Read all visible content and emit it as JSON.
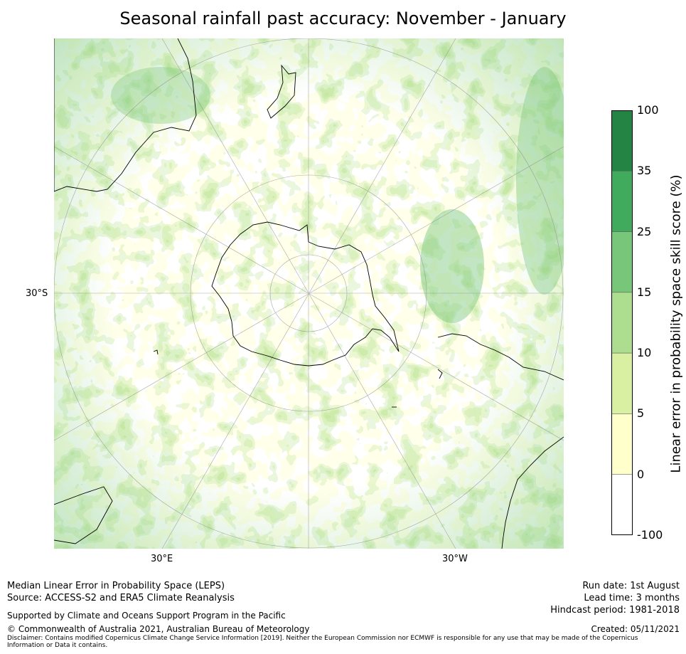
{
  "title": "Seasonal rainfall past accuracy: November - January",
  "axis_labels": {
    "lat_left": "30°S",
    "lon_left": "30°E",
    "lon_right": "30°W"
  },
  "colorbar": {
    "label": "Linear error in probability space skill score (%)",
    "ticks": [
      "100",
      "35",
      "25",
      "15",
      "10",
      "5",
      "0",
      "-100"
    ],
    "colors_top_to_bottom": [
      "#238443",
      "#41ab5d",
      "#78c679",
      "#addd8e",
      "#d9f0a3",
      "#ffffcc",
      "#ffffff"
    ]
  },
  "footer": {
    "left_line1": "Median Linear Error in Probability Space (LEPS)",
    "left_line2": "Source: ACCESS-S2 and ERA5 Climate Reanalysis",
    "support": "Supported by Climate and Oceans Support Program in the Pacific",
    "copyright": "© Commonwealth of Australia 2021, Australian Bureau of Meteorology",
    "disclaimer": "Disclaimer: Contains modified Copernicus Climate Change Service Information [2019]. Neither the European Commission nor ECMWF is responsible for any use that may be made of the Copernicus Information or Data it contains.",
    "run_date": "Run date: 1st August",
    "lead_time": "Lead time: 3 months",
    "hindcast": "Hindcast period: 1981-2018",
    "created": "Created: 05/11/2021"
  }
}
